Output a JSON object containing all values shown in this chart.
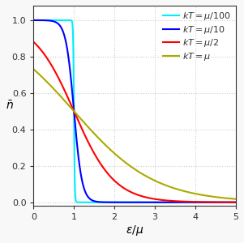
{
  "title": "",
  "xlabel": "$\\epsilon/\\mu$",
  "ylabel": "$\\bar{n}$",
  "xlim": [
    0,
    5
  ],
  "ylim": [
    -0.02,
    1.08
  ],
  "curves": [
    {
      "kT_ratio": 0.01,
      "color": "#00EEFF",
      "label": "$kT=\\mu/100$",
      "lw": 1.5
    },
    {
      "kT_ratio": 0.1,
      "color": "#0000FF",
      "label": "$kT=\\mu/10$",
      "lw": 1.5
    },
    {
      "kT_ratio": 0.5,
      "color": "#FF0000",
      "label": "$kT=\\mu/2$",
      "lw": 1.5
    },
    {
      "kT_ratio": 1.0,
      "color": "#AAAA00",
      "label": "$kT=\\mu$",
      "lw": 1.5
    }
  ],
  "bg_color": "#f8f8f8",
  "plot_bg": "#ffffff",
  "grid_color": "#cccccc",
  "tick_labelsize": 8,
  "label_fontsize": 10,
  "legend_fontsize": 8
}
